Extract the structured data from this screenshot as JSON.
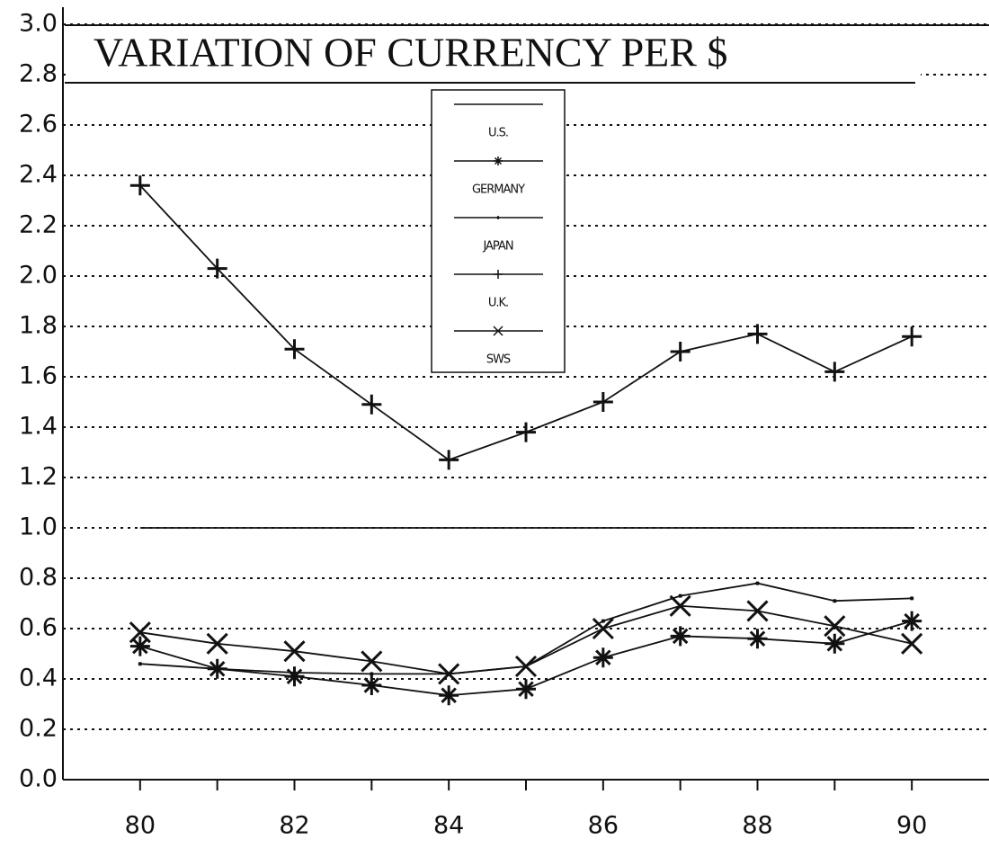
{
  "chart_data": {
    "type": "line",
    "title": "VARIATION OF CURRENCY PER $",
    "x": [
      80,
      81,
      82,
      83,
      84,
      85,
      86,
      87,
      88,
      89,
      90
    ],
    "series": [
      {
        "name": "U.S.",
        "color": "#111111",
        "marker": "dollar",
        "values": [
          1.0,
          1.0,
          1.0,
          1.0,
          1.0,
          1.0,
          1.0,
          1.0,
          1.0,
          1.0,
          1.0
        ]
      },
      {
        "name": "GERMANY",
        "color": "#111111",
        "marker": "asterisk",
        "values": [
          0.53,
          0.44,
          0.41,
          0.375,
          0.335,
          0.36,
          0.485,
          0.57,
          0.56,
          0.54,
          0.63
        ]
      },
      {
        "name": "JAPAN",
        "color": "#111111",
        "marker": "dot",
        "values": [
          0.46,
          0.44,
          0.425,
          0.42,
          0.42,
          0.45,
          0.63,
          0.73,
          0.78,
          0.71,
          0.72
        ]
      },
      {
        "name": "U.K.",
        "color": "#111111",
        "marker": "plus",
        "values": [
          2.36,
          2.03,
          1.71,
          1.49,
          1.27,
          1.38,
          1.5,
          1.7,
          1.77,
          1.62,
          1.76
        ]
      },
      {
        "name": "SWS",
        "color": "#111111",
        "marker": "cross",
        "values": [
          0.585,
          0.54,
          0.51,
          0.47,
          0.42,
          0.45,
          0.6,
          0.69,
          0.67,
          0.61,
          0.54
        ]
      }
    ],
    "xlim": [
      79,
      91
    ],
    "xticks": [
      80,
      82,
      84,
      86,
      88,
      90
    ],
    "xminor_ticks": [
      81,
      83,
      85,
      87,
      89
    ],
    "ylim": [
      0,
      3
    ],
    "yticks": [
      {
        "value": 0,
        "label": "0.0"
      },
      {
        "value": 0.2,
        "label": "0.2"
      },
      {
        "value": 0.4,
        "label": "0.4"
      },
      {
        "value": 0.6,
        "label": "0.6"
      },
      {
        "value": 0.8,
        "label": "0.8"
      },
      {
        "value": 1,
        "label": "1.0"
      },
      {
        "value": 1.2,
        "label": "1.2"
      },
      {
        "value": 1.4,
        "label": "1.4"
      },
      {
        "value": 1.6,
        "label": "1.6"
      },
      {
        "value": 1.8,
        "label": "1.8"
      },
      {
        "value": 2,
        "label": "2.0"
      },
      {
        "value": 2.2,
        "label": "2.2"
      },
      {
        "value": 2.4,
        "label": "2.4"
      },
      {
        "value": 2.6,
        "label": "2.6"
      },
      {
        "value": 2.8,
        "label": "2.8"
      },
      {
        "value": 3,
        "label": "3.0"
      }
    ],
    "grid": true,
    "legend": "top"
  }
}
